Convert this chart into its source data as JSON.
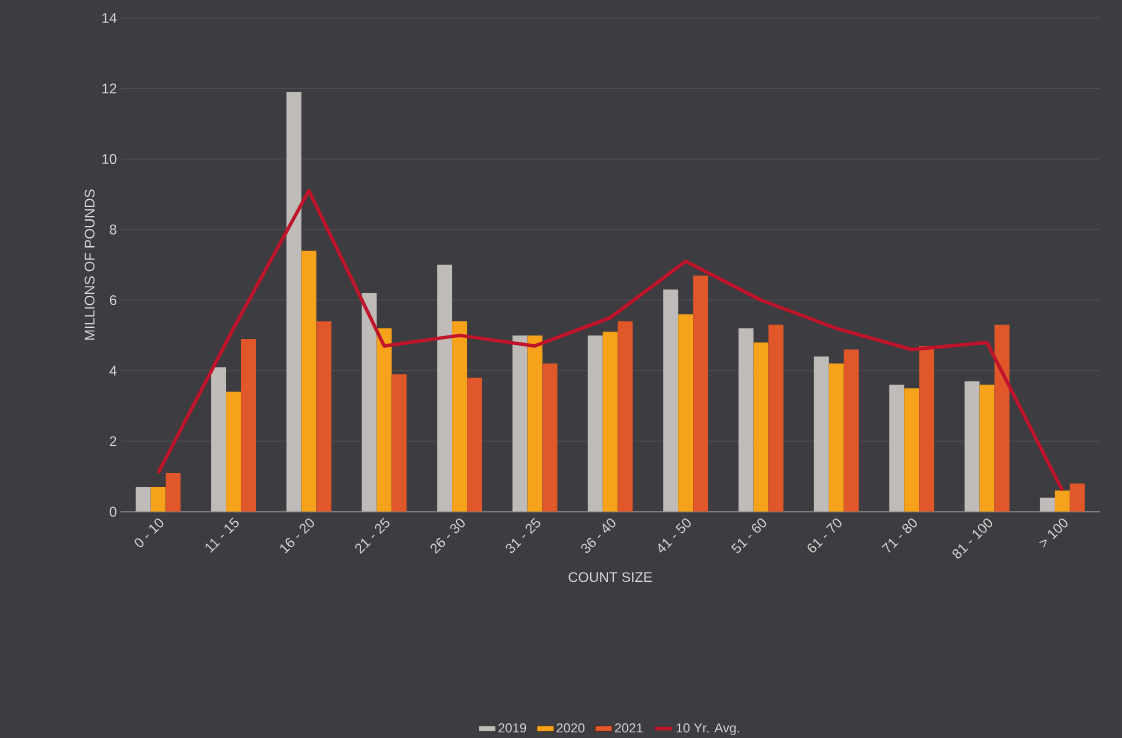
{
  "chart_data": {
    "type": "bar",
    "xlabel": "COUNT SIZE",
    "ylabel": "MILLIONS OF POUNDS",
    "categories": [
      "0 - 10",
      "11 - 15",
      "16 - 20",
      "21 - 25",
      "26 - 30",
      "31 - 25",
      "36 - 40",
      "41 - 50",
      "51 - 60",
      "61 - 70",
      "71 - 80",
      "81 - 100",
      "> 100"
    ],
    "series": [
      {
        "name": "2019",
        "color": "#bfbbb9",
        "values": [
          0.7,
          4.1,
          11.9,
          6.2,
          7.0,
          5.0,
          5.0,
          6.3,
          5.2,
          4.4,
          3.6,
          3.7,
          0.4
        ]
      },
      {
        "name": "2020",
        "color": "#f7a21b",
        "values": [
          0.7,
          3.4,
          7.4,
          5.2,
          5.4,
          5.0,
          5.1,
          5.6,
          4.8,
          4.2,
          3.5,
          3.6,
          0.6
        ]
      },
      {
        "name": "2021",
        "color": "#e0572a",
        "values": [
          1.1,
          4.9,
          5.4,
          3.9,
          3.8,
          4.2,
          5.4,
          6.7,
          5.3,
          4.6,
          4.7,
          5.3,
          0.8
        ]
      },
      {
        "name": "10 Yr. Avg.",
        "type": "line",
        "color": "#c0142a",
        "values": [
          1.1,
          5.2,
          9.1,
          4.7,
          5.0,
          4.7,
          5.5,
          7.1,
          6.0,
          5.2,
          4.6,
          4.8,
          0.6
        ]
      }
    ],
    "ylim": [
      0,
      14
    ],
    "yticks": [
      0,
      2,
      4,
      6,
      8,
      10,
      12,
      14
    ],
    "grid": "y",
    "legend": "bottom"
  }
}
